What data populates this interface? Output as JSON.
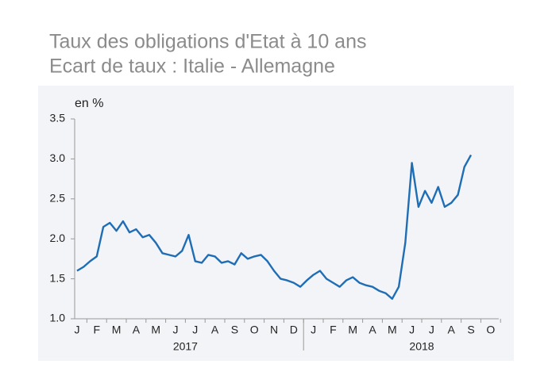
{
  "chart_data": {
    "type": "line",
    "title": "Taux des obligations d'Etat à 10 ans",
    "subtitle": "Ecart de taux : Italie - Allemagne",
    "y_label": "en %",
    "color": "#1f6db5",
    "ylim": [
      1.0,
      3.5
    ],
    "yticks": [
      {
        "value": 1,
        "label": "1.0"
      },
      1.5,
      {
        "value": 2,
        "label": "2.0"
      },
      2.5,
      {
        "value": 3,
        "label": "3.0"
      },
      3.5
    ],
    "month_labels": [
      "J",
      "F",
      "M",
      "A",
      "M",
      "J",
      "J",
      "A",
      "S",
      "O",
      "N",
      "D",
      "J",
      "F",
      "M",
      "A",
      "M",
      "J",
      "J",
      "A",
      "S",
      "O"
    ],
    "year_labels": [
      "2017",
      "2018"
    ],
    "values": [
      1.6,
      1.65,
      1.72,
      1.78,
      2.15,
      2.2,
      2.1,
      2.22,
      2.08,
      2.12,
      2.02,
      2.05,
      1.95,
      1.82,
      1.8,
      1.78,
      1.85,
      2.05,
      1.72,
      1.7,
      1.8,
      1.78,
      1.7,
      1.72,
      1.68,
      1.82,
      1.75,
      1.78,
      1.8,
      1.72,
      1.6,
      1.5,
      1.48,
      1.45,
      1.4,
      1.48,
      1.55,
      1.6,
      1.5,
      1.45,
      1.4,
      1.48,
      1.52,
      1.45,
      1.42,
      1.4,
      1.35,
      1.32,
      1.25,
      1.4,
      1.95,
      2.95,
      2.4,
      2.6,
      2.45,
      2.65,
      2.4,
      2.45,
      2.55,
      2.9,
      3.05
    ]
  }
}
